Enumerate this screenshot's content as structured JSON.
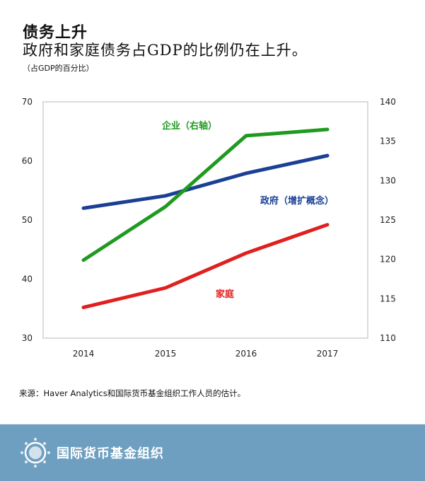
{
  "header": {
    "title": "债务上升",
    "subtitle": "政府和家庭债务占GDP的比例仍在上升。",
    "unit": "（占GDP的百分比）"
  },
  "chart_data": {
    "type": "line",
    "categories": [
      "2014",
      "2015",
      "2016",
      "2017"
    ],
    "y_left": {
      "ylim": [
        30,
        70
      ],
      "ticks": [
        "30",
        "40",
        "50",
        "60",
        "70"
      ]
    },
    "y_right": {
      "ylim": [
        110,
        140
      ],
      "ticks": [
        "110",
        "115",
        "120",
        "125",
        "130",
        "135",
        "140"
      ]
    },
    "grid": false,
    "series": [
      {
        "name": "政府（增扩概念）",
        "axis": "left",
        "color": "#1a3f95",
        "values": [
          52,
          54.1,
          57.9,
          60.9
        ]
      },
      {
        "name": "家庭",
        "axis": "left",
        "color": "#e0201e",
        "values": [
          35.2,
          38.5,
          44.4,
          49.2
        ]
      },
      {
        "name": "企业（右轴）",
        "axis": "right",
        "color": "#1f9a1f",
        "values": [
          119.9,
          126.7,
          135.7,
          136.5
        ]
      }
    ]
  },
  "footer": {
    "source": "来源：Haver Analytics和国际货币基金组织工作人员的估计。",
    "org": "国际货币基金组织",
    "logo": "IMF seal"
  }
}
